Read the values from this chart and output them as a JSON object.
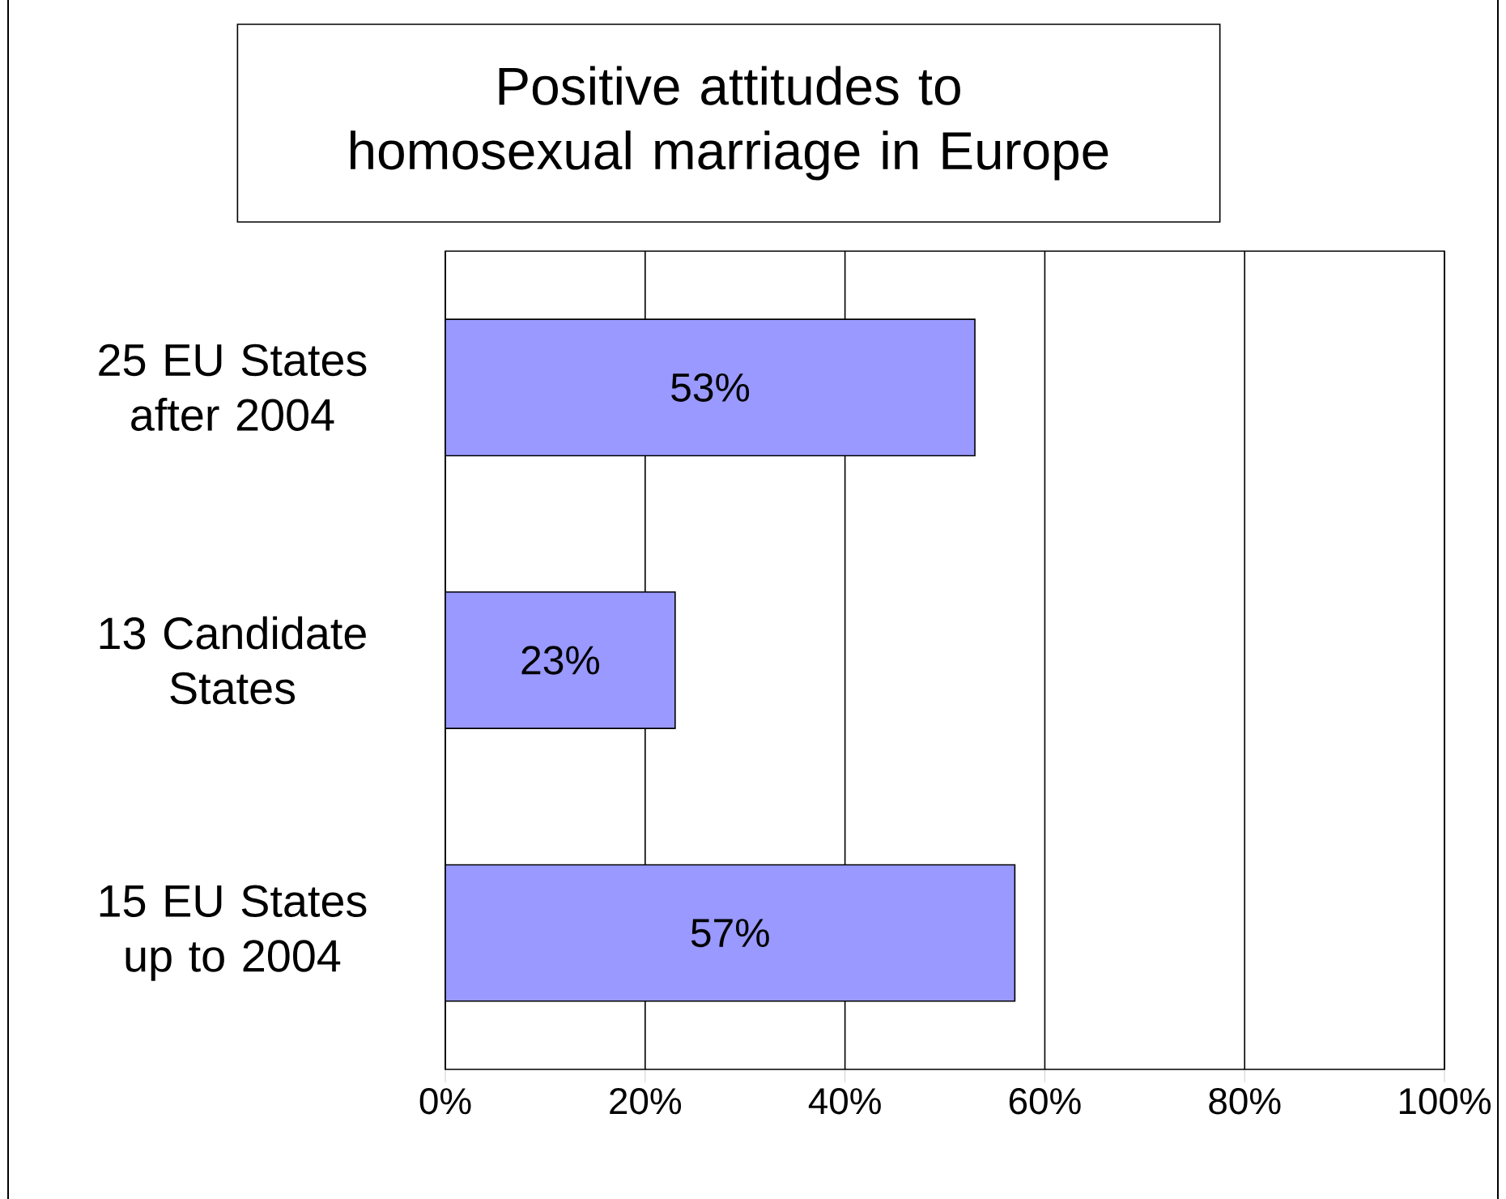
{
  "chart_data": {
    "type": "bar",
    "orientation": "horizontal",
    "title": "Positive attitudes to homosexual marriage in Europe",
    "categories": [
      "25 EU States after 2004",
      "13 Candidate States",
      "15 EU States up to 2004"
    ],
    "values": [
      53,
      23,
      57
    ],
    "value_labels": [
      "53%",
      "23%",
      "57%"
    ],
    "color": "#9999ff",
    "xlim": [
      0,
      100
    ],
    "xticks": [
      {
        "value": 0,
        "label": "0%"
      },
      {
        "value": 20,
        "label": "20%"
      },
      {
        "value": 40,
        "label": "40%"
      },
      {
        "value": 60,
        "label": "60%"
      },
      {
        "value": 80,
        "label": "80%"
      },
      {
        "value": 100,
        "label": "100%"
      }
    ],
    "grid": "x"
  }
}
